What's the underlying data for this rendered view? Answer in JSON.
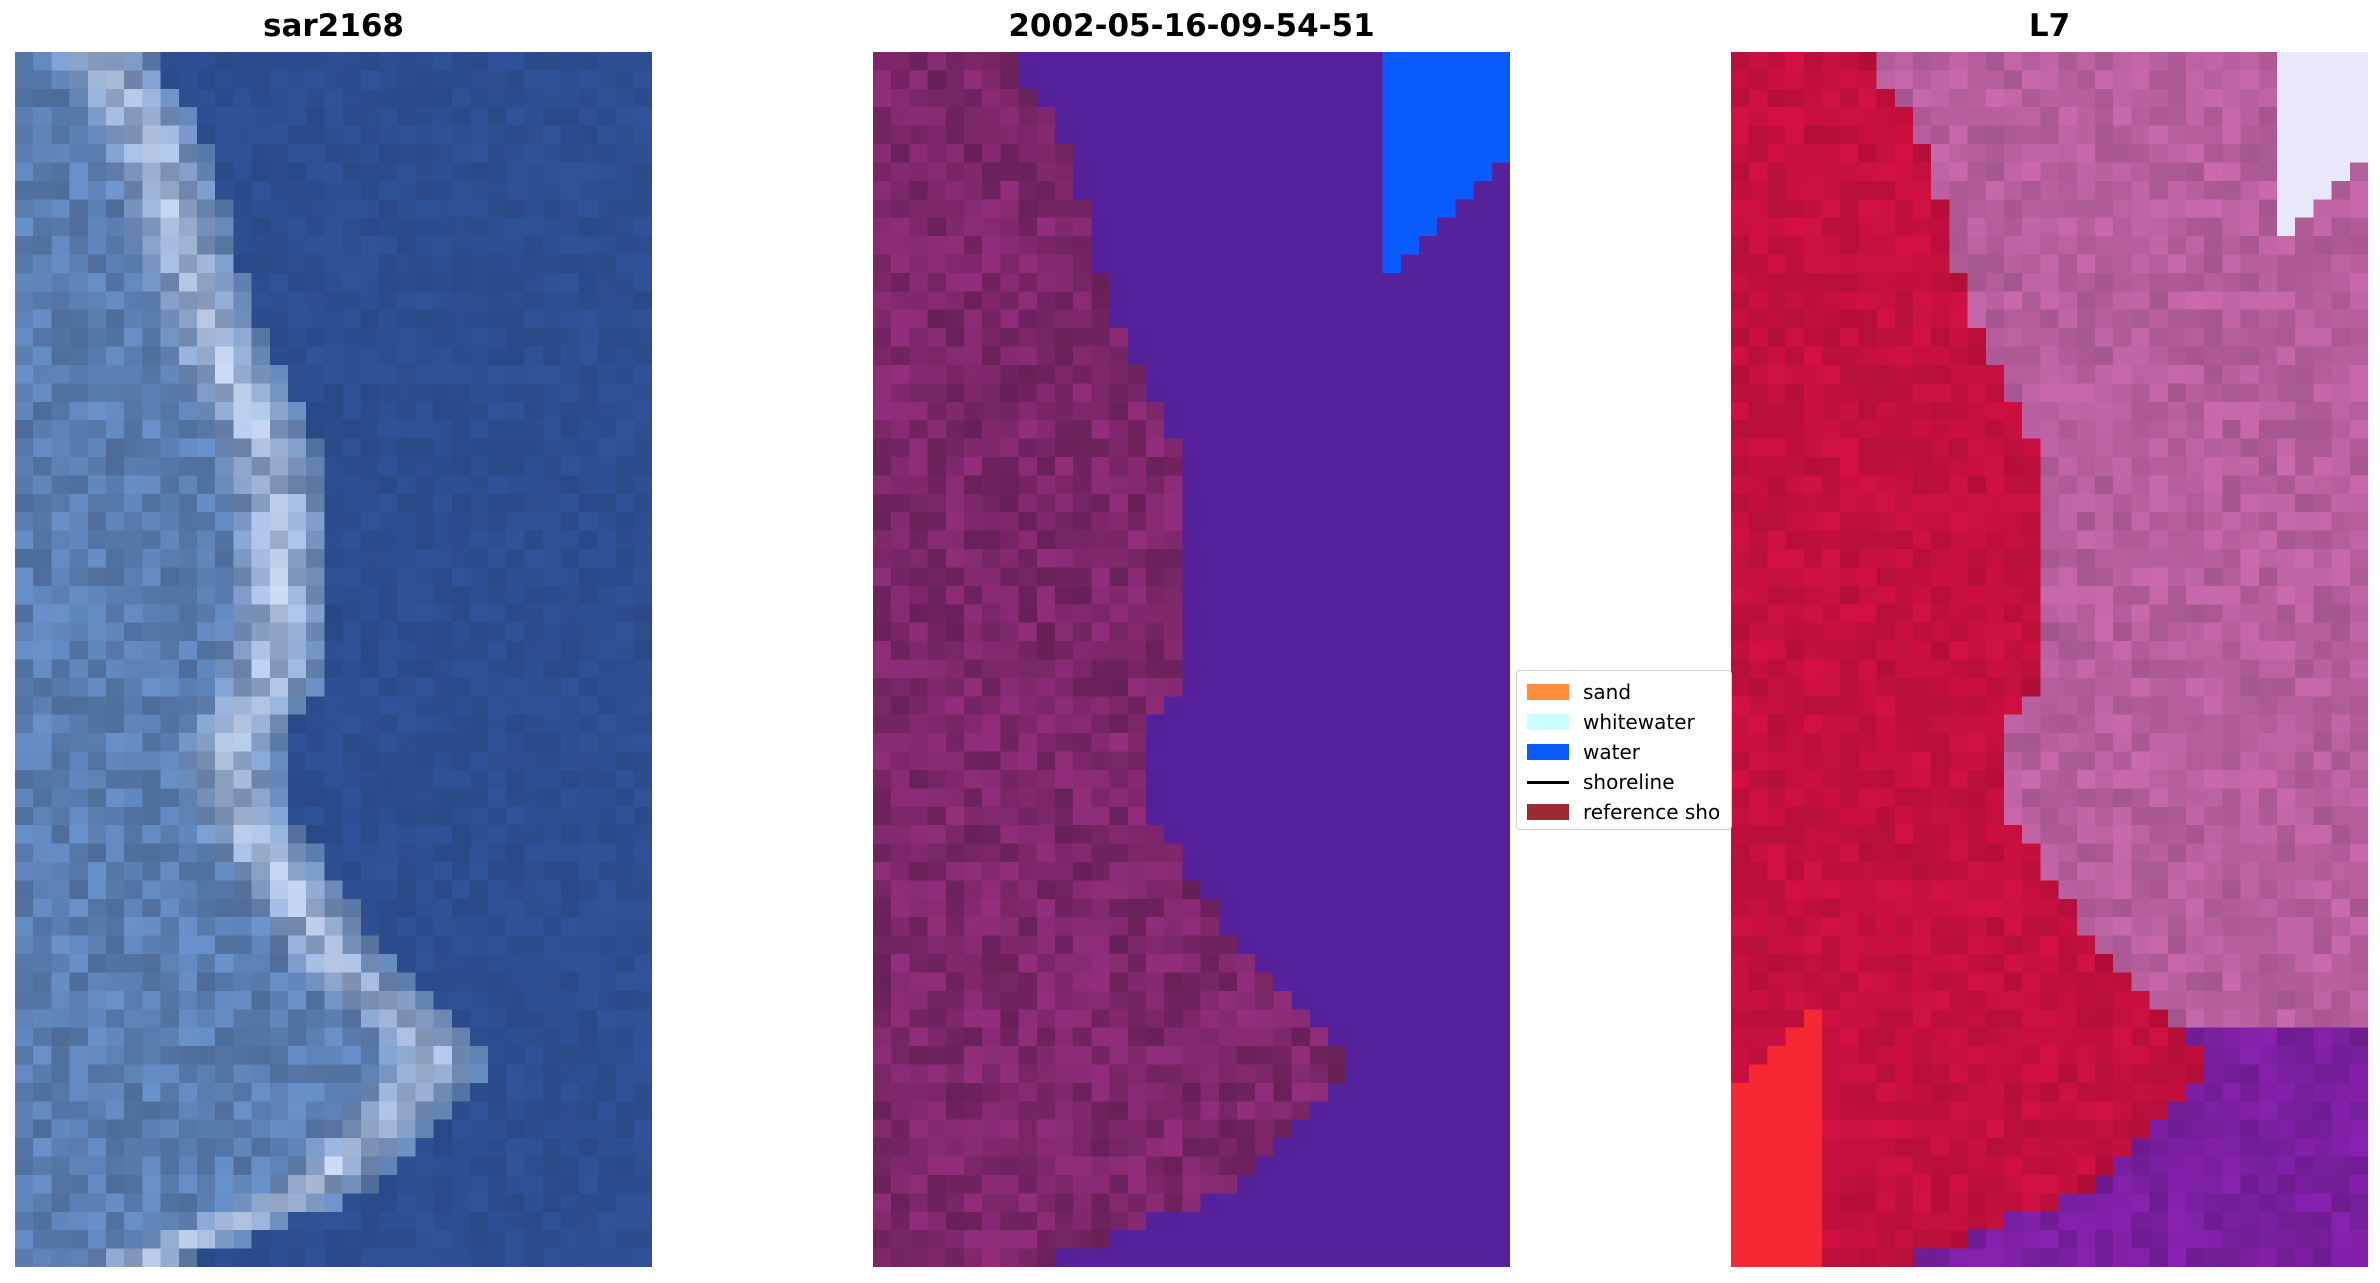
{
  "panels": [
    {
      "title": "sar2168",
      "style": "rgb",
      "image_name": "rgb-satellite-image"
    },
    {
      "title": "2002-05-16-09-54-51",
      "style": "classified",
      "image_name": "classified-image"
    },
    {
      "title": "L7",
      "style": "mndwi",
      "image_name": "index-image"
    }
  ],
  "legend": {
    "items": [
      {
        "label": "sand",
        "color": "#ff8c3a",
        "kind": "patch"
      },
      {
        "label": "whitewater",
        "color": "#ccffff",
        "kind": "patch"
      },
      {
        "label": "water",
        "color": "#0a5cff",
        "kind": "patch"
      },
      {
        "label": "shoreline",
        "color": "#000000",
        "kind": "line"
      },
      {
        "label": "reference sho",
        "color": "#9a2b33",
        "kind": "patch"
      }
    ]
  },
  "colors": {
    "water_rgb": "#2e4f93",
    "land_rgb": "#5b7fa8",
    "classified_water": "#55229c",
    "classified_land": "#7a2667",
    "index_land": "#c8103f",
    "index_water": "#b8609e",
    "index_deep": "#7a1fa0"
  }
}
